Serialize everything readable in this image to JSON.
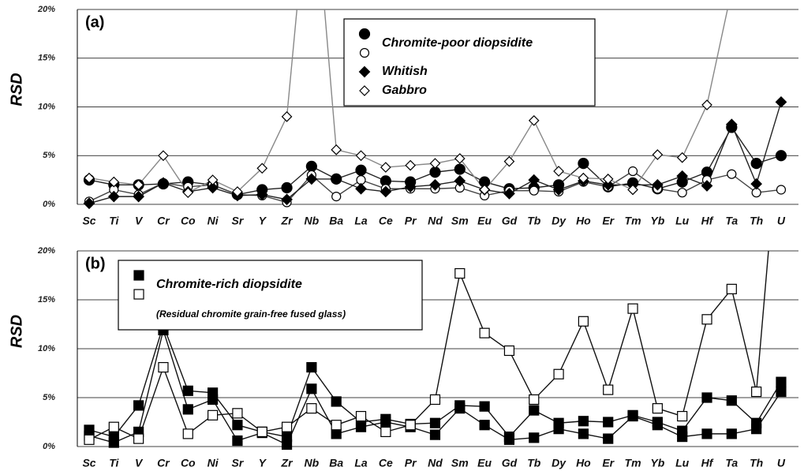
{
  "chart_data": [
    {
      "type": "line",
      "annotation": "(a)",
      "ylabel": "RSD",
      "categories": [
        "Sc",
        "Ti",
        "V",
        "Cr",
        "Co",
        "Ni",
        "Sr",
        "Y",
        "Zr",
        "Nb",
        "Ba",
        "La",
        "Ce",
        "Pr",
        "Nd",
        "Sm",
        "Eu",
        "Gd",
        "Tb",
        "Dy",
        "Ho",
        "Er",
        "Tm",
        "Yb",
        "Lu",
        "Hf",
        "Ta",
        "Th",
        "U"
      ],
      "ylim": [
        0,
        20
      ],
      "yticks": [
        {
          "value": 0,
          "label": "0%"
        },
        {
          "value": 5,
          "label": "5%"
        },
        {
          "value": 10,
          "label": "10%"
        },
        {
          "value": 15,
          "label": "15%"
        },
        {
          "value": 20,
          "label": "20%"
        }
      ],
      "grid": true,
      "legend_loc": "upper center",
      "series": [
        {
          "name": "Chromite-poor diopsidite",
          "color": "#222222",
          "marker": "circle",
          "fill": "filled",
          "values": [
            2.5,
            2.0,
            2.0,
            2.1,
            2.3,
            2.0,
            1.0,
            1.5,
            1.7,
            3.9,
            2.6,
            3.5,
            2.4,
            2.3,
            3.3,
            3.6,
            2.3,
            1.6,
            1.7,
            2.0,
            4.2,
            1.8,
            2.2,
            1.6,
            2.3,
            3.3,
            7.9,
            4.2,
            5.0
          ]
        },
        {
          "color": "#444444",
          "marker": "circle",
          "fill": "open",
          "values": [
            0.3,
            1.5,
            1.0,
            2.2,
            1.8,
            2.0,
            1.0,
            0.9,
            0.2,
            3.0,
            0.8,
            2.5,
            1.6,
            1.6,
            1.6,
            1.7,
            0.9,
            1.4,
            1.4,
            1.3,
            2.3,
            1.8,
            3.4,
            1.6,
            1.2,
            2.5,
            3.1,
            1.2,
            1.5
          ]
        },
        {
          "name": "Whitish",
          "color": "#222222",
          "marker": "diamond",
          "fill": "filled",
          "values": [
            0.1,
            0.8,
            0.8,
            2.2,
            1.3,
            1.7,
            0.9,
            1.0,
            0.5,
            2.6,
            2.6,
            1.6,
            1.3,
            1.8,
            2.0,
            2.4,
            1.5,
            1.1,
            2.5,
            1.5,
            2.4,
            2.0,
            2.0,
            2.0,
            2.9,
            1.9,
            8.2,
            2.1,
            10.5
          ]
        },
        {
          "name": "Gabbro",
          "color": "#888888",
          "marker": "diamond",
          "fill": "open",
          "values": [
            2.7,
            2.3,
            2.0,
            5.0,
            1.2,
            2.5,
            1.3,
            3.7,
            9.0,
            36,
            5.6,
            5.0,
            3.8,
            4.0,
            4.2,
            4.7,
            1.5,
            4.4,
            8.6,
            3.4,
            2.7,
            2.6,
            1.5,
            5.1,
            4.8,
            10.2,
            22,
            null,
            null
          ]
        }
      ]
    },
    {
      "type": "line",
      "annotation": "(b)",
      "ylabel": "RSD",
      "categories": [
        "Sc",
        "Ti",
        "V",
        "Cr",
        "Co",
        "Ni",
        "Sr",
        "Y",
        "Zr",
        "Nb",
        "Ba",
        "La",
        "Ce",
        "Pr",
        "Nd",
        "Sm",
        "Eu",
        "Gd",
        "Tb",
        "Dy",
        "Ho",
        "Er",
        "Tm",
        "Yb",
        "Lu",
        "Hf",
        "Ta",
        "Th",
        "U"
      ],
      "ylim": [
        0,
        20
      ],
      "yticks": [
        {
          "value": 0,
          "label": "0%"
        },
        {
          "value": 5,
          "label": "5%"
        },
        {
          "value": 10,
          "label": "10%"
        },
        {
          "value": 15,
          "label": "15%"
        },
        {
          "value": 20,
          "label": "20%"
        }
      ],
      "grid": true,
      "legend_loc": "upper left",
      "legend_note": "(Residual chromite grain-free fused glass)",
      "series": [
        {
          "name": "Chromite-rich diopsidite",
          "color": "#111111",
          "marker": "square",
          "fill": "filled",
          "values": [
            1.7,
            1.0,
            4.2,
            12.4,
            5.7,
            5.5,
            2.2,
            1.5,
            1.0,
            8.1,
            4.6,
            2.5,
            2.8,
            2.3,
            2.4,
            4.2,
            4.1,
            1.0,
            3.7,
            2.4,
            2.6,
            2.5,
            3.2,
            2.5,
            1.6,
            5.0,
            4.7,
            2.4,
            6.6
          ]
        },
        {
          "color": "#111111",
          "marker": "square",
          "fill": "filled",
          "values": [
            1.1,
            0.4,
            1.5,
            11.9,
            3.8,
            4.8,
            0.6,
            1.4,
            0.2,
            5.9,
            1.3,
            2.0,
            2.5,
            2.0,
            1.2,
            3.9,
            2.2,
            0.7,
            0.9,
            1.8,
            1.3,
            0.8,
            3.1,
            2.2,
            1.0,
            1.3,
            1.3,
            1.8,
            5.6
          ]
        },
        {
          "color": "#111111",
          "marker": "square",
          "fill": "open",
          "values": [
            0.7,
            2.0,
            0.8,
            8.1,
            1.3,
            3.2,
            3.4,
            1.5,
            2.0,
            3.9,
            2.2,
            3.1,
            1.5,
            2.2,
            4.8,
            17.7,
            11.6,
            9.8,
            4.8,
            7.4,
            12.8,
            5.8,
            14.1,
            3.9,
            3.1,
            13.0,
            16.1,
            5.6,
            35
          ]
        }
      ]
    }
  ]
}
